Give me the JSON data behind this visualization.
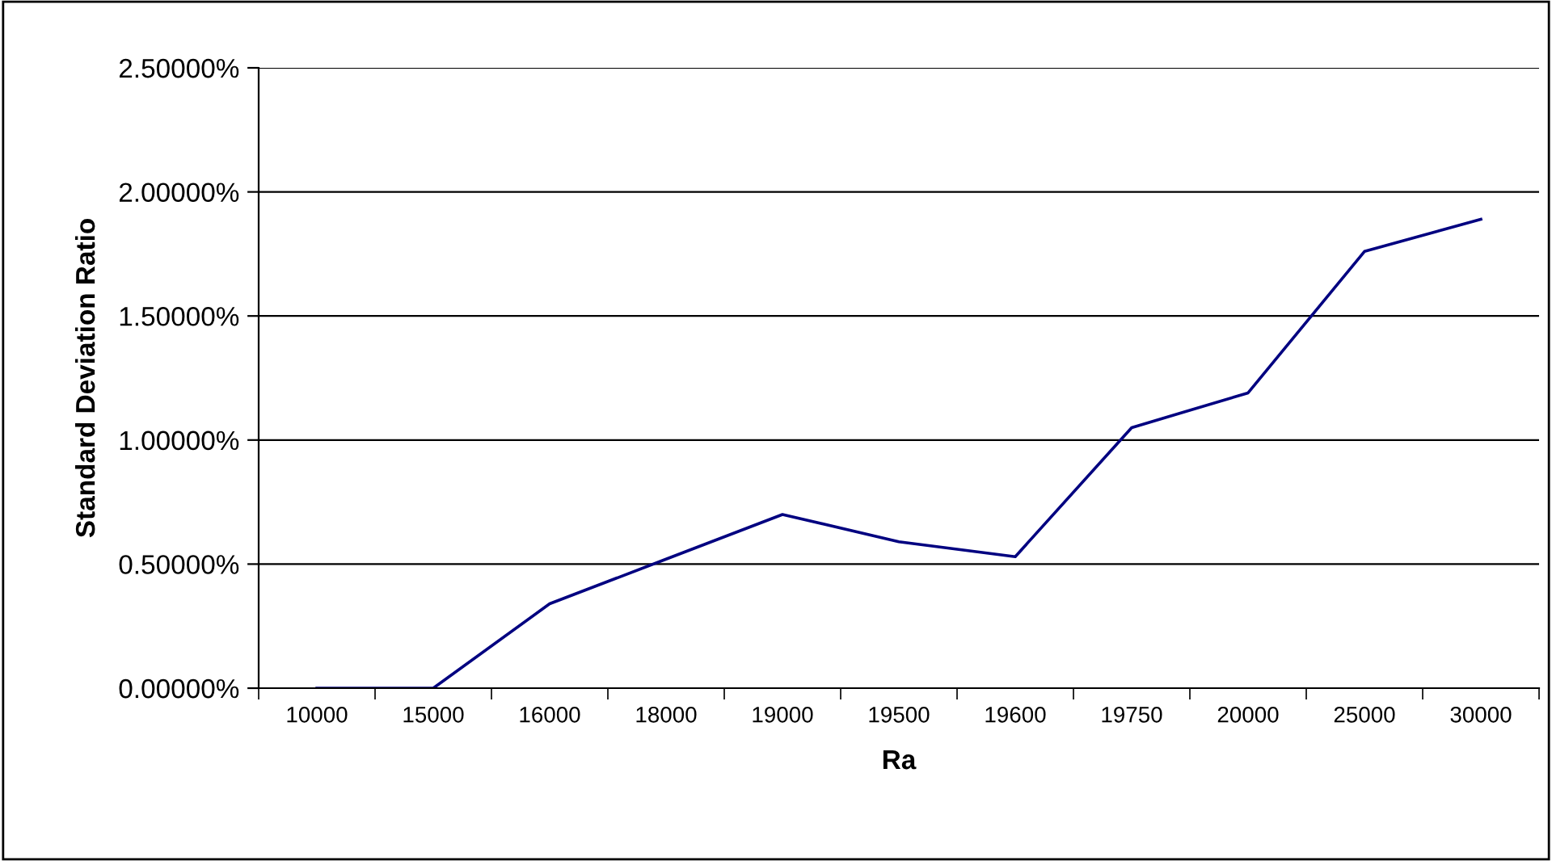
{
  "chart_data": {
    "type": "line",
    "xlabel": "Ra",
    "ylabel": "Standard Deviation Ratio",
    "categories": [
      "10000",
      "15000",
      "16000",
      "18000",
      "19000",
      "19500",
      "19600",
      "19750",
      "20000",
      "25000",
      "30000"
    ],
    "series": [
      {
        "color": "#000080",
        "values": [
          0,
          0,
          0.34,
          0.52,
          0.7,
          0.59,
          0.53,
          1.05,
          1.19,
          1.76,
          1.89
        ]
      }
    ],
    "ylim": [
      0,
      2.5
    ],
    "yticks": [
      {
        "value": 0,
        "label": "0.00000%"
      },
      {
        "value": 0.5,
        "label": "0.50000%"
      },
      {
        "value": 1,
        "label": "1.00000%"
      },
      {
        "value": 1.5,
        "label": "1.50000%"
      },
      {
        "value": 2,
        "label": "2.00000%"
      },
      {
        "value": 2.5,
        "label": "2.50000%"
      }
    ],
    "grid": "y",
    "marker": "none",
    "line_style": "solid"
  }
}
